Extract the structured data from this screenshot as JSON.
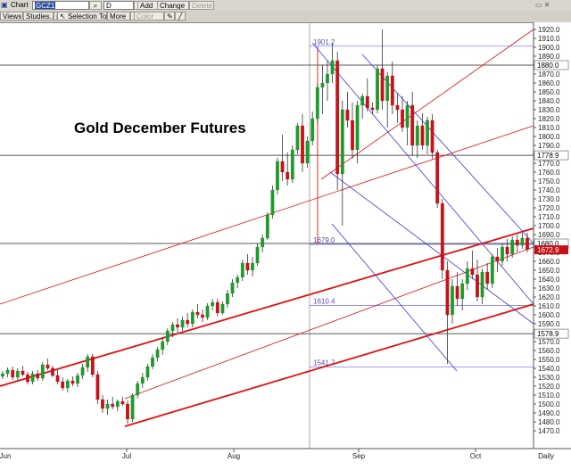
{
  "toolbar": {
    "chart_label": "Chart",
    "symbol": "GCZ1",
    "search_icon": "magnifier-icon",
    "interval_value": "D",
    "add_label": "Add",
    "change_label": "Change",
    "delete_label": "Delete",
    "views_label": "Views",
    "studies_label": "Studies...",
    "selection_tool_label": "Selection Tool",
    "more_label": "More",
    "color_label": "Color"
  },
  "colors": {
    "up_candle": "#1e9a2a",
    "down_candle": "#c81018",
    "channel_red": "#e01010",
    "channel_blue": "#3a3ae0",
    "grid": "#c8c8c8"
  },
  "chart_data": {
    "type": "candlestick",
    "title": "Gold December Futures",
    "yaxis_ticks": [
      1470,
      1480,
      1490,
      1500,
      1510,
      1520,
      1530,
      1540,
      1550,
      1560,
      1570,
      1580,
      1590,
      1600,
      1610,
      1620,
      1630,
      1640,
      1650,
      1660,
      1670,
      1680,
      1690,
      1700,
      1710,
      1720,
      1730,
      1740,
      1750,
      1760,
      1770,
      1780,
      1790,
      1800,
      1810,
      1820,
      1830,
      1840,
      1850,
      1860,
      1870,
      1880,
      1890,
      1900,
      1910,
      1920
    ],
    "ylim": [
      1465,
      1930
    ],
    "xaxis_labels": [
      "Jun",
      "Jul",
      "Aug",
      "Sep",
      "Oct",
      "Daily"
    ],
    "horizontal_levels": [
      {
        "label": "1880.0",
        "value": 1880.0
      },
      {
        "label": "1778.9",
        "value": 1778.9
      },
      {
        "label": "1680.0",
        "value": 1680.0
      },
      {
        "label": "1578.9",
        "value": 1578.9
      }
    ],
    "last_price_label": "1672.9",
    "last_price": 1672.9,
    "fib_labels": [
      {
        "label": "1901.2",
        "value": 1901.2
      },
      {
        "label": "1679.0",
        "value": 1679.0
      },
      {
        "label": "1610.4",
        "value": 1610.4
      },
      {
        "label": "1541.7",
        "value": 1541.7
      }
    ],
    "candles": [
      [
        1531,
        1537,
        1528,
        1534
      ],
      [
        1534,
        1541,
        1530,
        1538
      ],
      [
        1538,
        1542,
        1527,
        1530
      ],
      [
        1530,
        1540,
        1526,
        1537
      ],
      [
        1537,
        1543,
        1531,
        1533
      ],
      [
        1533,
        1536,
        1522,
        1525
      ],
      [
        1525,
        1537,
        1522,
        1534
      ],
      [
        1534,
        1538,
        1526,
        1529
      ],
      [
        1529,
        1547,
        1526,
        1544
      ],
      [
        1544,
        1551,
        1538,
        1540
      ],
      [
        1540,
        1543,
        1530,
        1532
      ],
      [
        1532,
        1538,
        1522,
        1525
      ],
      [
        1525,
        1530,
        1515,
        1518
      ],
      [
        1518,
        1528,
        1513,
        1526
      ],
      [
        1526,
        1531,
        1520,
        1523
      ],
      [
        1523,
        1535,
        1519,
        1532
      ],
      [
        1532,
        1545,
        1528,
        1541
      ],
      [
        1541,
        1556,
        1536,
        1553
      ],
      [
        1553,
        1556,
        1530,
        1533
      ],
      [
        1533,
        1537,
        1500,
        1505
      ],
      [
        1505,
        1510,
        1490,
        1495
      ],
      [
        1495,
        1505,
        1488,
        1500
      ],
      [
        1500,
        1508,
        1494,
        1497
      ],
      [
        1497,
        1505,
        1492,
        1503
      ],
      [
        1503,
        1508,
        1498,
        1500
      ],
      [
        1500,
        1504,
        1478,
        1483
      ],
      [
        1483,
        1512,
        1480,
        1510
      ],
      [
        1510,
        1526,
        1506,
        1523
      ],
      [
        1523,
        1535,
        1518,
        1530
      ],
      [
        1530,
        1545,
        1526,
        1542
      ],
      [
        1542,
        1556,
        1539,
        1552
      ],
      [
        1552,
        1564,
        1548,
        1561
      ],
      [
        1561,
        1574,
        1555,
        1570
      ],
      [
        1570,
        1585,
        1566,
        1582
      ],
      [
        1582,
        1592,
        1575,
        1589
      ],
      [
        1589,
        1596,
        1580,
        1586
      ],
      [
        1586,
        1598,
        1582,
        1594
      ],
      [
        1594,
        1602,
        1586,
        1590
      ],
      [
        1590,
        1606,
        1586,
        1603
      ],
      [
        1603,
        1612,
        1596,
        1600
      ],
      [
        1600,
        1606,
        1592,
        1597
      ],
      [
        1597,
        1613,
        1594,
        1610
      ],
      [
        1610,
        1618,
        1605,
        1614
      ],
      [
        1614,
        1618,
        1598,
        1602
      ],
      [
        1602,
        1615,
        1600,
        1612
      ],
      [
        1612,
        1628,
        1608,
        1624
      ],
      [
        1624,
        1640,
        1620,
        1636
      ],
      [
        1636,
        1645,
        1630,
        1642
      ],
      [
        1642,
        1662,
        1638,
        1658
      ],
      [
        1658,
        1668,
        1645,
        1650
      ],
      [
        1650,
        1665,
        1643,
        1658
      ],
      [
        1658,
        1680,
        1655,
        1676
      ],
      [
        1676,
        1690,
        1670,
        1686
      ],
      [
        1686,
        1715,
        1684,
        1712
      ],
      [
        1712,
        1745,
        1708,
        1740
      ],
      [
        1740,
        1776,
        1735,
        1772
      ],
      [
        1772,
        1802,
        1750,
        1760
      ],
      [
        1760,
        1782,
        1745,
        1752
      ],
      [
        1752,
        1790,
        1748,
        1785
      ],
      [
        1785,
        1815,
        1780,
        1812
      ],
      [
        1812,
        1825,
        1760,
        1770
      ],
      [
        1770,
        1800,
        1765,
        1795
      ],
      [
        1795,
        1828,
        1790,
        1820
      ],
      [
        1820,
        1860,
        1815,
        1855
      ],
      [
        1855,
        1880,
        1825,
        1860
      ],
      [
        1860,
        1885,
        1840,
        1870
      ],
      [
        1870,
        1905,
        1860,
        1885
      ],
      [
        1885,
        1895,
        1740,
        1758
      ],
      [
        1758,
        1840,
        1700,
        1830
      ],
      [
        1830,
        1850,
        1810,
        1818
      ],
      [
        1818,
        1838,
        1775,
        1785
      ],
      [
        1785,
        1840,
        1770,
        1835
      ],
      [
        1835,
        1848,
        1820,
        1845
      ],
      [
        1845,
        1865,
        1828,
        1832
      ],
      [
        1832,
        1838,
        1825,
        1830
      ],
      [
        1830,
        1880,
        1826,
        1876
      ],
      [
        1876,
        1920,
        1830,
        1840
      ],
      [
        1840,
        1872,
        1810,
        1868
      ],
      [
        1868,
        1884,
        1825,
        1835
      ],
      [
        1835,
        1848,
        1815,
        1830
      ],
      [
        1830,
        1845,
        1805,
        1810
      ],
      [
        1810,
        1840,
        1790,
        1835
      ],
      [
        1835,
        1850,
        1778,
        1790
      ],
      [
        1790,
        1818,
        1776,
        1812
      ],
      [
        1812,
        1826,
        1785,
        1790
      ],
      [
        1790,
        1822,
        1780,
        1818
      ],
      [
        1818,
        1825,
        1775,
        1782
      ],
      [
        1782,
        1785,
        1720,
        1725
      ],
      [
        1725,
        1730,
        1640,
        1650
      ],
      [
        1650,
        1660,
        1545,
        1600
      ],
      [
        1600,
        1640,
        1590,
        1632
      ],
      [
        1632,
        1648,
        1610,
        1618
      ],
      [
        1618,
        1640,
        1605,
        1635
      ],
      [
        1635,
        1660,
        1628,
        1652
      ],
      [
        1652,
        1672,
        1640,
        1645
      ],
      [
        1645,
        1662,
        1615,
        1620
      ],
      [
        1620,
        1652,
        1612,
        1648
      ],
      [
        1648,
        1658,
        1628,
        1635
      ],
      [
        1635,
        1668,
        1630,
        1665
      ],
      [
        1665,
        1675,
        1648,
        1660
      ],
      [
        1660,
        1680,
        1655,
        1676
      ],
      [
        1676,
        1685,
        1660,
        1668
      ],
      [
        1668,
        1688,
        1664,
        1684
      ],
      [
        1684,
        1690,
        1670,
        1678
      ],
      [
        1678,
        1692,
        1674,
        1686
      ],
      [
        1686,
        1692,
        1670,
        1673
      ]
    ]
  }
}
